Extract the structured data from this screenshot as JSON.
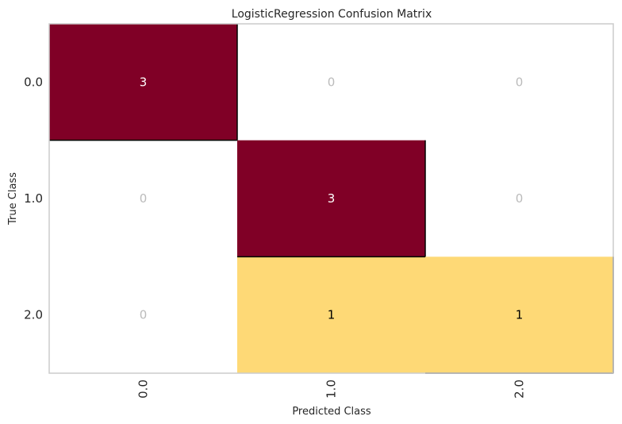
{
  "chart_data": {
    "type": "heatmap",
    "title": "LogisticRegression Confusion Matrix",
    "xlabel": "Predicted Class",
    "ylabel": "True Class",
    "x_categories": [
      "0.0",
      "1.0",
      "2.0"
    ],
    "y_categories": [
      "0.0",
      "1.0",
      "2.0"
    ],
    "values": [
      [
        3,
        0,
        0
      ],
      [
        0,
        3,
        0
      ],
      [
        0,
        1,
        1
      ]
    ],
    "colors": {
      "high": "#800026",
      "mid": "#fed976",
      "zero": "#ffffff",
      "zero_text": "#bbbbbb",
      "high_text": "#ffffff",
      "mid_text": "#000000"
    }
  }
}
